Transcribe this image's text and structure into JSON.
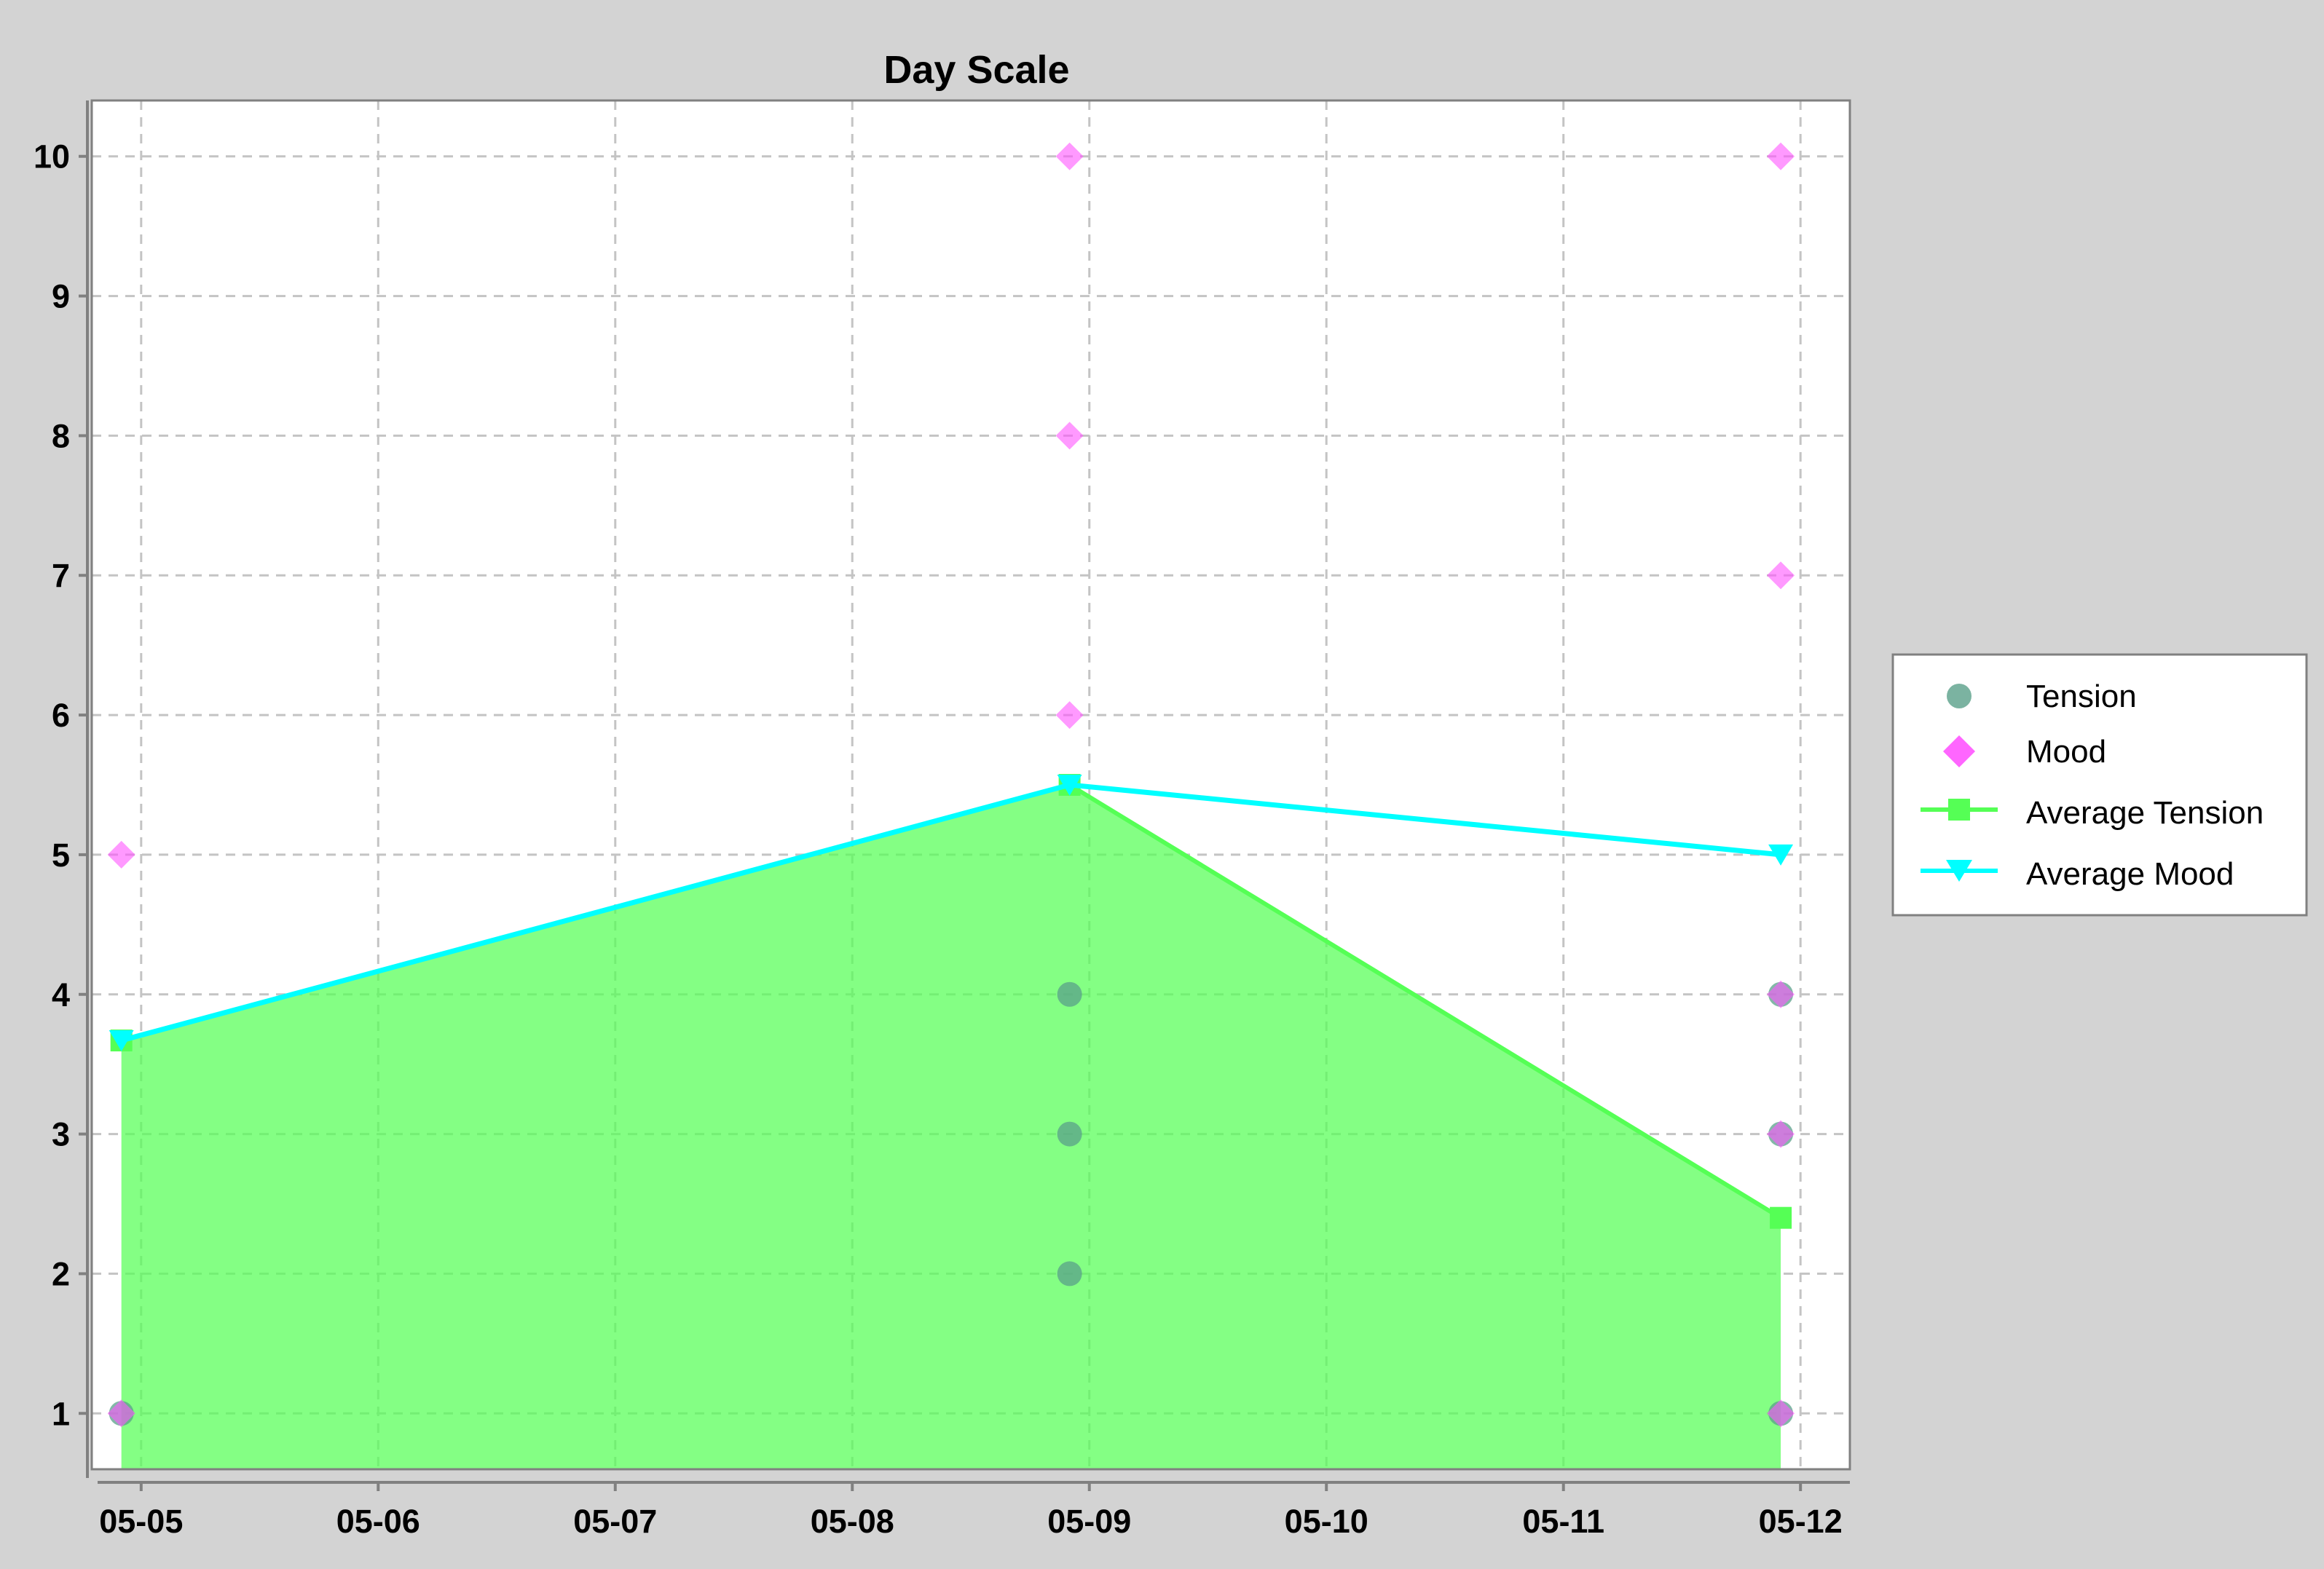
{
  "chart_data": {
    "type": "area",
    "title": "Day Scale",
    "xlabel": "",
    "ylabel": "",
    "x_ticks": [
      "05-05",
      "05-06",
      "05-07",
      "05-08",
      "05-09",
      "05-10",
      "05-11",
      "05-12"
    ],
    "y_ticks": [
      "1",
      "2",
      "3",
      "4",
      "5",
      "6",
      "7",
      "8",
      "9",
      "10"
    ],
    "xlim": [
      "05-04 19:00",
      "05-12 05:00"
    ],
    "ylim": [
      0.6,
      10.4
    ],
    "grid": true,
    "legend_position": "right",
    "series": [
      {
        "name": "Tension",
        "kind": "scatter",
        "marker": "circle",
        "color": "#5aa08a",
        "points": [
          {
            "x": "05-04 22:00",
            "y": 1
          },
          {
            "x": "05-08 22:00",
            "y": 2
          },
          {
            "x": "05-08 22:00",
            "y": 3
          },
          {
            "x": "05-08 22:00",
            "y": 4
          },
          {
            "x": "05-11 22:00",
            "y": 1
          },
          {
            "x": "05-11 22:00",
            "y": 3
          },
          {
            "x": "05-11 22:00",
            "y": 4
          }
        ]
      },
      {
        "name": "Mood",
        "kind": "scatter",
        "marker": "diamond",
        "color": "#ff55ff",
        "points": [
          {
            "x": "05-04 22:00",
            "y": 5
          },
          {
            "x": "05-04 22:00",
            "y": 1
          },
          {
            "x": "05-08 22:00",
            "y": 10
          },
          {
            "x": "05-08 22:00",
            "y": 8
          },
          {
            "x": "05-08 22:00",
            "y": 6
          },
          {
            "x": "05-11 22:00",
            "y": 10
          },
          {
            "x": "05-11 22:00",
            "y": 7
          },
          {
            "x": "05-11 22:00",
            "y": 4
          },
          {
            "x": "05-11 22:00",
            "y": 3
          },
          {
            "x": "05-11 22:00",
            "y": 1
          }
        ]
      },
      {
        "name": "Average Tension",
        "kind": "area",
        "marker": "square",
        "color": "#55ff55",
        "points": [
          {
            "x": "05-04 22:00",
            "y": 3.67
          },
          {
            "x": "05-08 22:00",
            "y": 5.5
          },
          {
            "x": "05-11 22:00",
            "y": 2.4
          }
        ]
      },
      {
        "name": "Average Mood",
        "kind": "line",
        "marker": "triangle-down",
        "color": "#00ffff",
        "points": [
          {
            "x": "05-04 22:00",
            "y": 3.67
          },
          {
            "x": "05-08 22:00",
            "y": 5.5
          },
          {
            "x": "05-11 22:00",
            "y": 5.0
          }
        ]
      }
    ]
  },
  "colors": {
    "page_background": "#d3d3d3",
    "plot_background": "#ffffff",
    "grid": "#c4c4c4",
    "axis": "#808080"
  },
  "legend": {
    "items": [
      {
        "label": "Tension",
        "icon": "circle-marker-icon"
      },
      {
        "label": "Mood",
        "icon": "diamond-marker-icon"
      },
      {
        "label": "Average Tension",
        "icon": "square-line-icon"
      },
      {
        "label": "Average Mood",
        "icon": "triangle-line-icon"
      }
    ]
  }
}
